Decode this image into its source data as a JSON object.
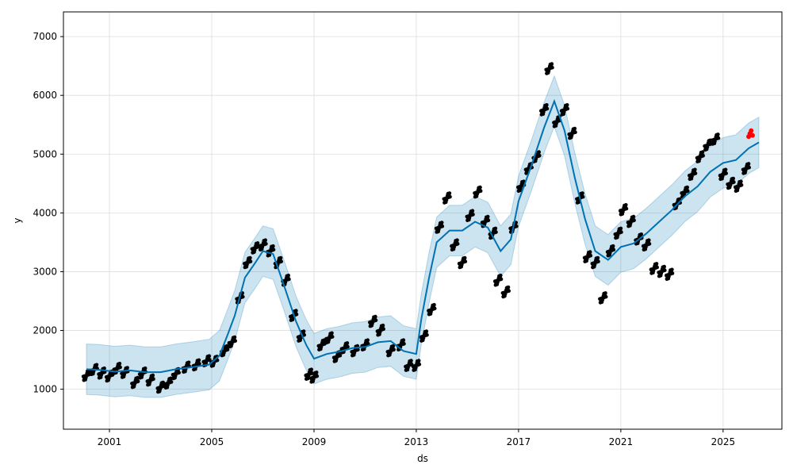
{
  "chart_data": {
    "type": "scatter",
    "title": "",
    "xlabel": "ds",
    "ylabel": "y",
    "xlim": [
      1999.2,
      2027.3
    ],
    "ylim": [
      320,
      7420
    ],
    "grid": true,
    "x_ticks": [
      {
        "value": 2001,
        "label": "2001"
      },
      {
        "value": 2005,
        "label": "2005"
      },
      {
        "value": 2009,
        "label": "2009"
      },
      {
        "value": 2013,
        "label": "2013"
      },
      {
        "value": 2017,
        "label": "2017"
      },
      {
        "value": 2021,
        "label": "2021"
      },
      {
        "value": 2025,
        "label": "2025"
      }
    ],
    "y_ticks": [
      {
        "value": 1000,
        "label": "1000"
      },
      {
        "value": 2000,
        "label": "2000"
      },
      {
        "value": 3000,
        "label": "3000"
      },
      {
        "value": 4000,
        "label": "4000"
      },
      {
        "value": 5000,
        "label": "5000"
      },
      {
        "value": 6000,
        "label": "6000"
      },
      {
        "value": 7000,
        "label": "7000"
      }
    ],
    "colors": {
      "observed": "#000000",
      "forecast": "#0072B2",
      "interval": "#0072B2",
      "recent": "#ff0000",
      "grid": "#dddddd"
    },
    "series": [
      {
        "kind": "forecast_line",
        "points": [
          [
            2000.1,
            1340
          ],
          [
            2000.6,
            1330
          ],
          [
            2001.2,
            1300
          ],
          [
            2001.8,
            1320
          ],
          [
            2002.4,
            1290
          ],
          [
            2003.0,
            1290
          ],
          [
            2003.6,
            1340
          ],
          [
            2004.3,
            1380
          ],
          [
            2004.9,
            1420
          ],
          [
            2005.3,
            1570
          ],
          [
            2005.6,
            1900
          ],
          [
            2005.9,
            2250
          ],
          [
            2006.3,
            2900
          ],
          [
            2006.7,
            3150
          ],
          [
            2007.0,
            3350
          ],
          [
            2007.4,
            3300
          ],
          [
            2007.8,
            2800
          ],
          [
            2008.3,
            2150
          ],
          [
            2008.7,
            1750
          ],
          [
            2009.0,
            1520
          ],
          [
            2009.5,
            1600
          ],
          [
            2010.0,
            1640
          ],
          [
            2010.5,
            1700
          ],
          [
            2011.0,
            1720
          ],
          [
            2011.5,
            1800
          ],
          [
            2012.0,
            1820
          ],
          [
            2012.5,
            1650
          ],
          [
            2013.0,
            1600
          ],
          [
            2013.2,
            2200
          ],
          [
            2013.5,
            2900
          ],
          [
            2013.8,
            3500
          ],
          [
            2014.3,
            3700
          ],
          [
            2014.8,
            3700
          ],
          [
            2015.3,
            3850
          ],
          [
            2015.8,
            3750
          ],
          [
            2016.3,
            3350
          ],
          [
            2016.7,
            3550
          ],
          [
            2017.0,
            4200
          ],
          [
            2017.5,
            4800
          ],
          [
            2018.0,
            5450
          ],
          [
            2018.4,
            5900
          ],
          [
            2018.8,
            5400
          ],
          [
            2019.2,
            4600
          ],
          [
            2019.6,
            3900
          ],
          [
            2020.0,
            3350
          ],
          [
            2020.5,
            3200
          ],
          [
            2021.0,
            3420
          ],
          [
            2021.5,
            3480
          ],
          [
            2022.0,
            3650
          ],
          [
            2022.5,
            3850
          ],
          [
            2023.0,
            4050
          ],
          [
            2023.5,
            4280
          ],
          [
            2024.0,
            4450
          ],
          [
            2024.5,
            4700
          ],
          [
            2025.0,
            4850
          ],
          [
            2025.5,
            4900
          ],
          [
            2026.0,
            5100
          ],
          [
            2026.4,
            5200
          ]
        ]
      },
      {
        "kind": "observed",
        "points": [
          [
            2000.1,
            1280
          ],
          [
            2000.4,
            1380
          ],
          [
            2000.7,
            1320
          ],
          [
            2001.0,
            1270
          ],
          [
            2001.3,
            1400
          ],
          [
            2001.6,
            1330
          ],
          [
            2002.0,
            1160
          ],
          [
            2002.3,
            1320
          ],
          [
            2002.6,
            1200
          ],
          [
            2003.0,
            1080
          ],
          [
            2003.3,
            1150
          ],
          [
            2003.6,
            1310
          ],
          [
            2004.0,
            1420
          ],
          [
            2004.4,
            1460
          ],
          [
            2004.8,
            1530
          ],
          [
            2005.1,
            1520
          ],
          [
            2005.5,
            1700
          ],
          [
            2005.8,
            1850
          ],
          [
            2006.1,
            2600
          ],
          [
            2006.4,
            3200
          ],
          [
            2006.7,
            3450
          ],
          [
            2007.0,
            3500
          ],
          [
            2007.3,
            3400
          ],
          [
            2007.6,
            3200
          ],
          [
            2007.9,
            2900
          ],
          [
            2008.2,
            2300
          ],
          [
            2008.5,
            1950
          ],
          [
            2008.8,
            1300
          ],
          [
            2009.0,
            1250
          ],
          [
            2009.3,
            1800
          ],
          [
            2009.6,
            1920
          ],
          [
            2009.9,
            1600
          ],
          [
            2010.2,
            1750
          ],
          [
            2010.6,
            1700
          ],
          [
            2011.0,
            1800
          ],
          [
            2011.3,
            2200
          ],
          [
            2011.6,
            2050
          ],
          [
            2012.0,
            1700
          ],
          [
            2012.4,
            1800
          ],
          [
            2012.7,
            1450
          ],
          [
            2013.0,
            1450
          ],
          [
            2013.3,
            1950
          ],
          [
            2013.6,
            2400
          ],
          [
            2013.9,
            3800
          ],
          [
            2014.2,
            4300
          ],
          [
            2014.5,
            3500
          ],
          [
            2014.8,
            3200
          ],
          [
            2015.1,
            4000
          ],
          [
            2015.4,
            4400
          ],
          [
            2015.7,
            3900
          ],
          [
            2016.0,
            3700
          ],
          [
            2016.2,
            2900
          ],
          [
            2016.5,
            2700
          ],
          [
            2016.8,
            3800
          ],
          [
            2017.1,
            4500
          ],
          [
            2017.4,
            4800
          ],
          [
            2017.7,
            5000
          ],
          [
            2018.0,
            5800
          ],
          [
            2018.2,
            6500
          ],
          [
            2018.5,
            5600
          ],
          [
            2018.8,
            5800
          ],
          [
            2019.1,
            5400
          ],
          [
            2019.4,
            4300
          ],
          [
            2019.7,
            3300
          ],
          [
            2020.0,
            3200
          ],
          [
            2020.3,
            2600
          ],
          [
            2020.6,
            3400
          ],
          [
            2020.9,
            3700
          ],
          [
            2021.1,
            4100
          ],
          [
            2021.4,
            3900
          ],
          [
            2021.7,
            3600
          ],
          [
            2022.0,
            3500
          ],
          [
            2022.3,
            3100
          ],
          [
            2022.6,
            3050
          ],
          [
            2022.9,
            3000
          ],
          [
            2023.2,
            4200
          ],
          [
            2023.5,
            4400
          ],
          [
            2023.8,
            4700
          ],
          [
            2024.1,
            5000
          ],
          [
            2024.4,
            5200
          ],
          [
            2024.7,
            5300
          ],
          [
            2025.0,
            4700
          ],
          [
            2025.3,
            4550
          ],
          [
            2025.6,
            4500
          ],
          [
            2025.9,
            4800
          ]
        ]
      },
      {
        "kind": "recent",
        "points": [
          [
            2026.0,
            5300
          ],
          [
            2026.05,
            5350
          ],
          [
            2026.1,
            5400
          ],
          [
            2026.15,
            5320
          ]
        ]
      }
    ],
    "interval_width": 430
  }
}
